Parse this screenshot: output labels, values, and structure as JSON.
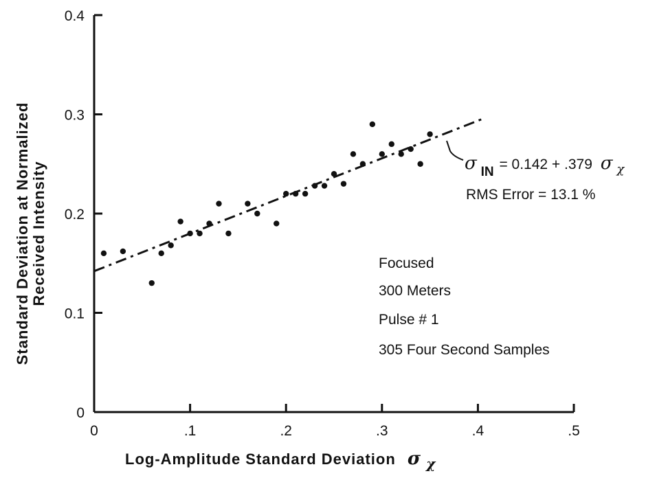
{
  "chart_data": {
    "type": "scatter",
    "xlabel": "Log-Amplitude Standard Deviation",
    "xlabel_symbol": "σ",
    "xlabel_symbol_sub": "χ",
    "ylabel_line1": "Standard Deviation at Normalized",
    "ylabel_line2": "Received Intensity",
    "xlim": [
      0,
      0.5
    ],
    "ylim": [
      0,
      0.4
    ],
    "xticks": [
      {
        "value": 0,
        "label": "0"
      },
      {
        "value": 0.1,
        "label": ".1"
      },
      {
        "value": 0.2,
        "label": ".2"
      },
      {
        "value": 0.3,
        "label": ".3"
      },
      {
        "value": 0.4,
        "label": ".4"
      },
      {
        "value": 0.5,
        "label": ".5"
      }
    ],
    "yticks": [
      {
        "value": 0,
        "label": "0"
      },
      {
        "value": 0.1,
        "label": "0.1"
      },
      {
        "value": 0.2,
        "label": "0.2"
      },
      {
        "value": 0.3,
        "label": "0.3"
      },
      {
        "value": 0.4,
        "label": "0.4"
      }
    ],
    "grid": false,
    "points": [
      [
        0.01,
        0.16
      ],
      [
        0.03,
        0.162
      ],
      [
        0.06,
        0.13
      ],
      [
        0.07,
        0.16
      ],
      [
        0.08,
        0.168
      ],
      [
        0.09,
        0.192
      ],
      [
        0.1,
        0.18
      ],
      [
        0.11,
        0.18
      ],
      [
        0.12,
        0.19
      ],
      [
        0.13,
        0.21
      ],
      [
        0.14,
        0.18
      ],
      [
        0.16,
        0.21
      ],
      [
        0.17,
        0.2
      ],
      [
        0.19,
        0.19
      ],
      [
        0.2,
        0.22
      ],
      [
        0.21,
        0.22
      ],
      [
        0.22,
        0.22
      ],
      [
        0.23,
        0.228
      ],
      [
        0.24,
        0.228
      ],
      [
        0.25,
        0.24
      ],
      [
        0.26,
        0.23
      ],
      [
        0.27,
        0.26
      ],
      [
        0.28,
        0.25
      ],
      [
        0.29,
        0.29
      ],
      [
        0.3,
        0.26
      ],
      [
        0.31,
        0.27
      ],
      [
        0.32,
        0.26
      ],
      [
        0.33,
        0.265
      ],
      [
        0.34,
        0.25
      ],
      [
        0.35,
        0.28
      ]
    ],
    "fit": {
      "intercept": 0.142,
      "slope": 0.379,
      "x_range": [
        0,
        0.405
      ],
      "style": "dash-dot"
    },
    "annotation": {
      "lhs_symbol": "σ",
      "lhs_sub": "IN",
      "equation": "= 0.142 + .379",
      "rhs_symbol": "σ",
      "rhs_sub": "χ",
      "rms": "RMS Error = 13.1 %"
    },
    "info_lines": [
      "Focused",
      "300 Meters",
      "Pulse # 1",
      "305 Four Second Samples"
    ]
  }
}
